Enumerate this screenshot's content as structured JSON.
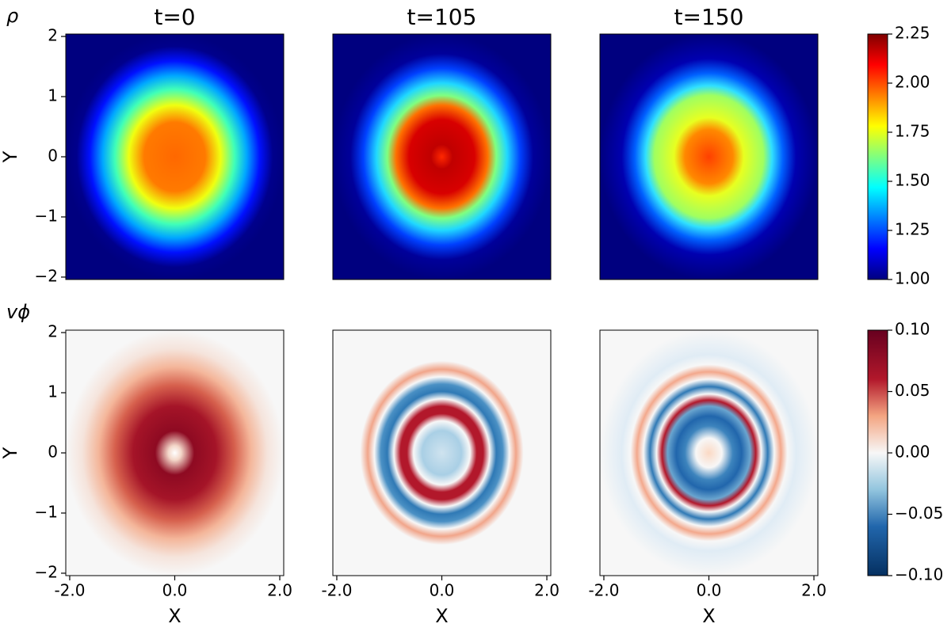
{
  "chart_data": [
    {
      "type": "heatmap",
      "title": "t=0",
      "annotation": "ρ",
      "ylabel": "Y",
      "colormap": "jet",
      "xlim": [
        -2.075,
        2.075
      ],
      "ylim": [
        -2.04,
        2.04
      ],
      "yticks": [
        {
          "value": -2,
          "label": "−2"
        },
        {
          "value": -1,
          "label": "−1"
        },
        0,
        1,
        2
      ]
    },
    {
      "type": "heatmap",
      "title": "t=105",
      "colormap": "jet",
      "xlim": [
        -2.075,
        2.075
      ],
      "ylim": [
        -2.04,
        2.04
      ]
    },
    {
      "type": "heatmap",
      "title": "t=150",
      "colormap": "jet",
      "xlim": [
        -2.075,
        2.075
      ],
      "ylim": [
        -2.04,
        2.04
      ]
    },
    {
      "type": "heatmap",
      "annotation": "vϕ",
      "ylabel": "Y",
      "xlabel": "X",
      "colormap": "RdBu_r",
      "xlim": [
        -2.075,
        2.075
      ],
      "ylim": [
        -2.04,
        2.04
      ],
      "xticks": [
        {
          "value": -2,
          "label": "-2.0"
        },
        {
          "value": 0,
          "label": "0.0"
        },
        {
          "value": 2,
          "label": "2.0"
        }
      ],
      "yticks": [
        {
          "value": -2,
          "label": "−2"
        },
        {
          "value": -1,
          "label": "−1"
        },
        0,
        1,
        2
      ]
    },
    {
      "type": "heatmap",
      "xlabel": "X",
      "colormap": "RdBu_r",
      "xlim": [
        -2.075,
        2.075
      ],
      "ylim": [
        -2.04,
        2.04
      ],
      "xticks": [
        {
          "value": -2,
          "label": "-2.0"
        },
        {
          "value": 0,
          "label": "0.0"
        },
        {
          "value": 2,
          "label": "2.0"
        }
      ]
    },
    {
      "type": "heatmap",
      "xlabel": "X",
      "colormap": "RdBu_r",
      "xlim": [
        -2.075,
        2.075
      ],
      "ylim": [
        -2.04,
        2.04
      ],
      "xticks": [
        {
          "value": -2,
          "label": "-2.0"
        },
        {
          "value": 0,
          "label": "0.0"
        },
        {
          "value": 2,
          "label": "2.0"
        }
      ]
    },
    {
      "type": "colorbar",
      "colormap": "jet",
      "ylim": [
        1,
        2.25
      ],
      "yticks": [
        {
          "value": 1,
          "label": "1.00"
        },
        1.25,
        {
          "value": 1.5,
          "label": "1.50"
        },
        1.75,
        {
          "value": 2,
          "label": "2.00"
        },
        2.25
      ]
    },
    {
      "type": "colorbar",
      "colormap": "RdBu_r",
      "ylim": [
        -0.1,
        0.1
      ],
      "yticks": [
        {
          "value": -0.1,
          "label": "−0.10"
        },
        {
          "value": -0.05,
          "label": "−0.05"
        },
        {
          "value": 0,
          "label": "0.00"
        },
        {
          "value": 0.05,
          "label": "0.05"
        },
        {
          "value": 0.1,
          "label": "0.10"
        }
      ]
    }
  ]
}
